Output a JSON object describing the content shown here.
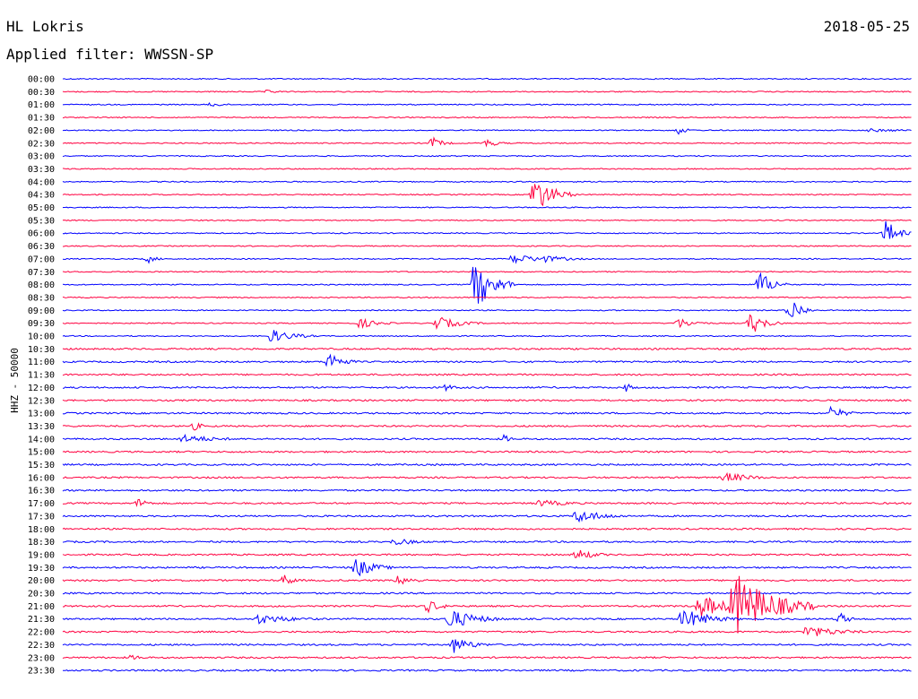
{
  "header": {
    "station": "HL Lokris",
    "date": "2018-05-25",
    "filter": "Applied filter: WWSSN-SP"
  },
  "axis": {
    "ylabel": "HHZ - 50000"
  },
  "colors": {
    "odd": "#0000ff",
    "even": "#ff0040"
  },
  "chart_data": {
    "type": "line",
    "title": "HL Lokris",
    "ylabel": "HHZ - 50000",
    "tick_labels": [
      "00:00",
      "00:30",
      "01:00",
      "01:30",
      "02:00",
      "02:30",
      "03:00",
      "03:30",
      "04:00",
      "04:30",
      "05:00",
      "05:30",
      "06:00",
      "06:30",
      "07:00",
      "07:30",
      "08:00",
      "08:30",
      "09:00",
      "09:30",
      "10:00",
      "10:30",
      "11:00",
      "11:30",
      "12:00",
      "12:30",
      "13:00",
      "13:30",
      "14:00",
      "15:00",
      "15:30",
      "16:00",
      "16:30",
      "17:00",
      "17:30",
      "18:00",
      "18:30",
      "19:00",
      "19:30",
      "20:00",
      "20:30",
      "21:00",
      "21:30",
      "22:00",
      "22:30",
      "23:00",
      "23:30"
    ],
    "events": [
      {
        "row": 1,
        "x": 0.24,
        "amp": 2,
        "dur": 0.02
      },
      {
        "row": 2,
        "x": 0.175,
        "amp": 3,
        "dur": 0.015
      },
      {
        "row": 4,
        "x": 0.725,
        "amp": 5,
        "dur": 0.01
      },
      {
        "row": 4,
        "x": 0.95,
        "amp": 2,
        "dur": 0.05
      },
      {
        "row": 5,
        "x": 0.435,
        "amp": 7,
        "dur": 0.012
      },
      {
        "row": 5,
        "x": 0.497,
        "amp": 5,
        "dur": 0.015
      },
      {
        "row": 9,
        "x": 0.555,
        "amp": 22,
        "dur": 0.02
      },
      {
        "row": 12,
        "x": 0.97,
        "amp": 16,
        "dur": 0.012
      },
      {
        "row": 14,
        "x": 0.1,
        "amp": 5,
        "dur": 0.01
      },
      {
        "row": 14,
        "x": 0.53,
        "amp": 6,
        "dur": 0.03
      },
      {
        "row": 14,
        "x": 0.56,
        "amp": 5,
        "dur": 0.03
      },
      {
        "row": 16,
        "x": 0.485,
        "amp": 30,
        "dur": 0.02
      },
      {
        "row": 16,
        "x": 0.82,
        "amp": 16,
        "dur": 0.015
      },
      {
        "row": 18,
        "x": 0.857,
        "amp": 16,
        "dur": 0.012
      },
      {
        "row": 19,
        "x": 0.35,
        "amp": 6,
        "dur": 0.02
      },
      {
        "row": 19,
        "x": 0.44,
        "amp": 8,
        "dur": 0.025
      },
      {
        "row": 19,
        "x": 0.725,
        "amp": 6,
        "dur": 0.02
      },
      {
        "row": 19,
        "x": 0.81,
        "amp": 14,
        "dur": 0.015
      },
      {
        "row": 20,
        "x": 0.245,
        "amp": 8,
        "dur": 0.025
      },
      {
        "row": 22,
        "x": 0.313,
        "amp": 12,
        "dur": 0.015
      },
      {
        "row": 24,
        "x": 0.45,
        "amp": 4,
        "dur": 0.015
      },
      {
        "row": 24,
        "x": 0.664,
        "amp": 5,
        "dur": 0.008
      },
      {
        "row": 26,
        "x": 0.905,
        "amp": 8,
        "dur": 0.015
      },
      {
        "row": 27,
        "x": 0.155,
        "amp": 5,
        "dur": 0.01
      },
      {
        "row": 28,
        "x": 0.14,
        "amp": 5,
        "dur": 0.04
      },
      {
        "row": 28,
        "x": 0.52,
        "amp": 5,
        "dur": 0.008
      },
      {
        "row": 31,
        "x": 0.78,
        "amp": 6,
        "dur": 0.03
      },
      {
        "row": 33,
        "x": 0.09,
        "amp": 8,
        "dur": 0.008
      },
      {
        "row": 33,
        "x": 0.56,
        "amp": 4,
        "dur": 0.04
      },
      {
        "row": 34,
        "x": 0.605,
        "amp": 8,
        "dur": 0.03
      },
      {
        "row": 36,
        "x": 0.39,
        "amp": 4,
        "dur": 0.03
      },
      {
        "row": 37,
        "x": 0.605,
        "amp": 7,
        "dur": 0.02
      },
      {
        "row": 38,
        "x": 0.345,
        "amp": 12,
        "dur": 0.02
      },
      {
        "row": 39,
        "x": 0.26,
        "amp": 7,
        "dur": 0.012
      },
      {
        "row": 39,
        "x": 0.395,
        "amp": 6,
        "dur": 0.02
      },
      {
        "row": 41,
        "x": 0.43,
        "amp": 8,
        "dur": 0.015
      },
      {
        "row": 41,
        "x": 0.75,
        "amp": 14,
        "dur": 0.03
      },
      {
        "row": 41,
        "x": 0.79,
        "amp": 40,
        "dur": 0.04
      },
      {
        "row": 42,
        "x": 0.23,
        "amp": 6,
        "dur": 0.04
      },
      {
        "row": 42,
        "x": 0.455,
        "amp": 12,
        "dur": 0.03
      },
      {
        "row": 42,
        "x": 0.73,
        "amp": 12,
        "dur": 0.03
      },
      {
        "row": 42,
        "x": 0.915,
        "amp": 8,
        "dur": 0.01
      },
      {
        "row": 43,
        "x": 0.875,
        "amp": 7,
        "dur": 0.04
      },
      {
        "row": 44,
        "x": 0.46,
        "amp": 10,
        "dur": 0.02
      },
      {
        "row": 45,
        "x": 0.08,
        "amp": 3,
        "dur": 0.02
      }
    ]
  }
}
